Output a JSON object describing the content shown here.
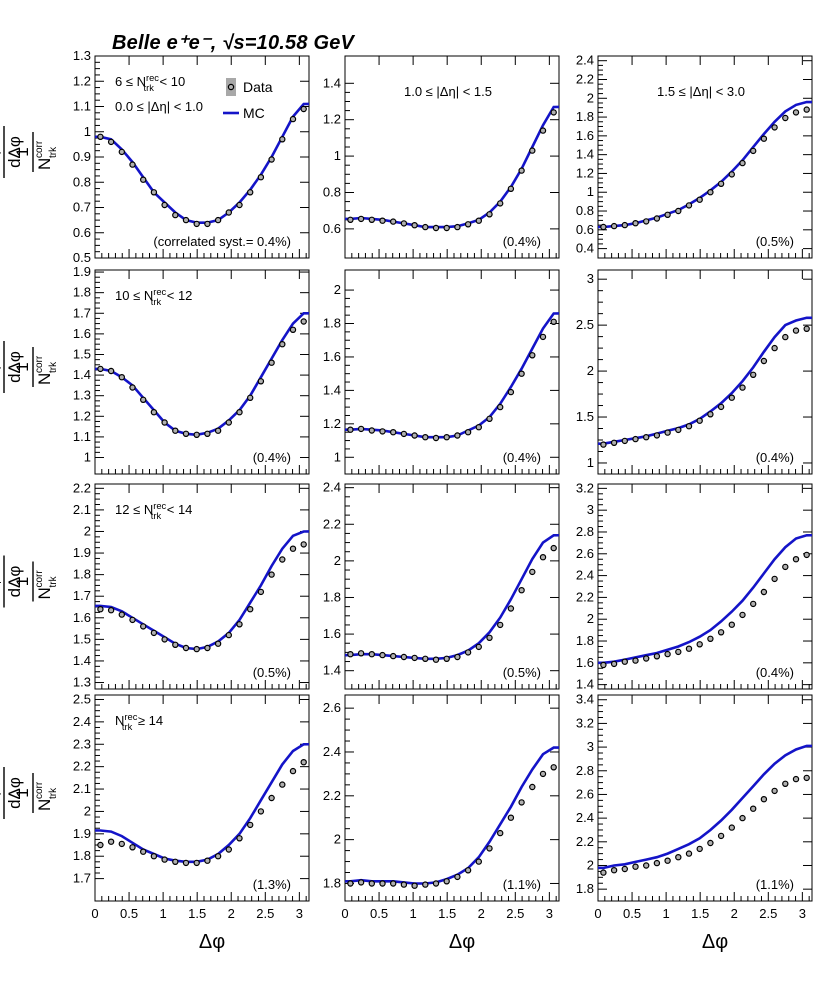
{
  "header": {
    "experiment": "Belle",
    "collision": "e⁺e⁻,",
    "energy": "√s=10.58 GeV"
  },
  "legend": {
    "data_label": "Data",
    "mc_label": "MC"
  },
  "axes": {
    "xlabel": "Δφ",
    "ylabel_num": "dN",
    "ylabel_num_sup": "corr",
    "ylabel_num_sub": "pair",
    "ylabel_den": "dΔφ",
    "ylabel_frac_num": "1",
    "ylabel_frac_den": "N",
    "ylabel_frac_den_sup": "corr",
    "ylabel_frac_den_sub": "trk"
  },
  "rows": [
    {
      "label": {
        "pre": "6 ≤ N",
        "sup": "rec",
        "sub": "trk",
        "post": " < 10"
      }
    },
    {
      "label": {
        "pre": "10 ≤ N",
        "sup": "rec",
        "sub": "trk",
        "post": " < 12"
      }
    },
    {
      "label": {
        "pre": "12 ≤ N",
        "sup": "rec",
        "sub": "trk",
        "post": " < 14"
      }
    },
    {
      "label": {
        "pre": "N",
        "sup": "rec",
        "sub": "trk",
        "post": " ≥ 14"
      }
    }
  ],
  "columns": [
    {
      "label": "0.0 ≤ |Δη| < 1.0"
    },
    {
      "label": "1.0 ≤ |Δη| < 1.5"
    },
    {
      "label": "1.5 ≤ |Δη| < 3.0"
    }
  ],
  "chart_data": [
    {
      "type": "scatter",
      "row": 0,
      "col": 0,
      "xlim": [
        0,
        3.14159
      ],
      "ylim": [
        0.5,
        1.3
      ],
      "yticks": [
        0.5,
        0.6,
        0.7,
        0.8,
        0.9,
        1.0,
        1.1,
        1.2,
        1.3
      ],
      "yticklabels": [
        "0.5",
        "0.6",
        "0.7",
        "0.8",
        "0.9",
        "1",
        "1.1",
        "1.2",
        "1.3"
      ],
      "syst": "(correlated syst.= 0.4%)",
      "data": [
        0.98,
        0.96,
        0.92,
        0.87,
        0.81,
        0.76,
        0.71,
        0.67,
        0.65,
        0.635,
        0.635,
        0.65,
        0.68,
        0.71,
        0.76,
        0.82,
        0.89,
        0.97,
        1.05,
        1.09
      ],
      "mc": [
        0.98,
        0.97,
        0.93,
        0.88,
        0.82,
        0.76,
        0.72,
        0.68,
        0.65,
        0.64,
        0.64,
        0.65,
        0.68,
        0.72,
        0.77,
        0.83,
        0.9,
        0.98,
        1.06,
        1.11
      ]
    },
    {
      "type": "scatter",
      "row": 0,
      "col": 1,
      "xlim": [
        0,
        3.14159
      ],
      "ylim": [
        0.44,
        1.55
      ],
      "yticks": [
        0.6,
        0.8,
        1.0,
        1.2,
        1.4
      ],
      "yticklabels": [
        "0.6",
        "0.8",
        "1",
        "1.2",
        "1.4"
      ],
      "syst": "(0.4%)",
      "data": [
        0.65,
        0.655,
        0.65,
        0.645,
        0.64,
        0.63,
        0.62,
        0.61,
        0.605,
        0.605,
        0.61,
        0.625,
        0.645,
        0.68,
        0.74,
        0.82,
        0.92,
        1.03,
        1.14,
        1.24
      ],
      "mc": [
        0.655,
        0.66,
        0.655,
        0.65,
        0.64,
        0.63,
        0.62,
        0.61,
        0.61,
        0.61,
        0.615,
        0.63,
        0.65,
        0.69,
        0.75,
        0.83,
        0.93,
        1.05,
        1.17,
        1.27
      ]
    },
    {
      "type": "scatter",
      "row": 0,
      "col": 2,
      "xlim": [
        0,
        3.14159
      ],
      "ylim": [
        0.3,
        2.45
      ],
      "yticks": [
        0.4,
        0.6,
        0.8,
        1.0,
        1.2,
        1.4,
        1.6,
        1.8,
        2.0,
        2.2,
        2.4
      ],
      "yticklabels": [
        "0.4",
        "0.6",
        "0.8",
        "1",
        "1.2",
        "1.4",
        "1.6",
        "1.8",
        "2",
        "2.2",
        "2.4"
      ],
      "syst": "(0.5%)",
      "data": [
        0.63,
        0.64,
        0.65,
        0.67,
        0.69,
        0.72,
        0.76,
        0.8,
        0.86,
        0.92,
        1.0,
        1.09,
        1.19,
        1.31,
        1.44,
        1.57,
        1.69,
        1.79,
        1.85,
        1.88
      ],
      "mc": [
        0.63,
        0.64,
        0.65,
        0.67,
        0.7,
        0.73,
        0.77,
        0.81,
        0.87,
        0.94,
        1.02,
        1.11,
        1.22,
        1.34,
        1.48,
        1.62,
        1.75,
        1.86,
        1.93,
        1.96
      ]
    },
    {
      "type": "scatter",
      "row": 1,
      "col": 0,
      "xlim": [
        0,
        3.14159
      ],
      "ylim": [
        0.92,
        1.91
      ],
      "yticks": [
        1.0,
        1.1,
        1.2,
        1.3,
        1.4,
        1.5,
        1.6,
        1.7,
        1.8,
        1.9
      ],
      "yticklabels": [
        "1",
        "1.1",
        "1.2",
        "1.3",
        "1.4",
        "1.5",
        "1.6",
        "1.7",
        "1.8",
        "1.9"
      ],
      "syst": "(0.4%)",
      "data": [
        1.43,
        1.42,
        1.39,
        1.34,
        1.28,
        1.22,
        1.17,
        1.13,
        1.115,
        1.11,
        1.115,
        1.13,
        1.17,
        1.22,
        1.29,
        1.37,
        1.46,
        1.55,
        1.62,
        1.66
      ],
      "mc": [
        1.43,
        1.42,
        1.39,
        1.35,
        1.29,
        1.23,
        1.17,
        1.13,
        1.115,
        1.11,
        1.12,
        1.14,
        1.18,
        1.23,
        1.3,
        1.39,
        1.48,
        1.57,
        1.65,
        1.7
      ]
    },
    {
      "type": "scatter",
      "row": 1,
      "col": 1,
      "xlim": [
        0,
        3.14159
      ],
      "ylim": [
        0.9,
        2.12
      ],
      "yticks": [
        1.0,
        1.2,
        1.4,
        1.6,
        1.8,
        2.0
      ],
      "yticklabels": [
        "1",
        "1.2",
        "1.4",
        "1.6",
        "1.8",
        "2"
      ],
      "syst": "(0.4%)",
      "data": [
        1.165,
        1.17,
        1.16,
        1.155,
        1.15,
        1.14,
        1.13,
        1.12,
        1.115,
        1.12,
        1.13,
        1.15,
        1.18,
        1.23,
        1.3,
        1.39,
        1.5,
        1.61,
        1.72,
        1.81
      ],
      "mc": [
        1.165,
        1.17,
        1.165,
        1.16,
        1.15,
        1.14,
        1.13,
        1.12,
        1.12,
        1.12,
        1.13,
        1.16,
        1.19,
        1.24,
        1.32,
        1.42,
        1.53,
        1.65,
        1.77,
        1.86
      ]
    },
    {
      "type": "scatter",
      "row": 1,
      "col": 2,
      "xlim": [
        0,
        3.14159
      ],
      "ylim": [
        0.88,
        3.1
      ],
      "yticks": [
        1.0,
        1.5,
        2.0,
        2.5,
        3.0
      ],
      "yticklabels": [
        "1",
        "1.5",
        "2",
        "2.5",
        "3"
      ],
      "syst": "(0.4%)",
      "data": [
        1.2,
        1.22,
        1.24,
        1.26,
        1.28,
        1.3,
        1.33,
        1.36,
        1.4,
        1.46,
        1.53,
        1.61,
        1.71,
        1.82,
        1.96,
        2.11,
        2.25,
        2.37,
        2.44,
        2.46
      ],
      "mc": [
        1.21,
        1.23,
        1.25,
        1.27,
        1.29,
        1.32,
        1.35,
        1.38,
        1.42,
        1.48,
        1.56,
        1.65,
        1.76,
        1.89,
        2.04,
        2.21,
        2.37,
        2.5,
        2.55,
        2.58
      ]
    },
    {
      "type": "scatter",
      "row": 2,
      "col": 0,
      "xlim": [
        0,
        3.14159
      ],
      "ylim": [
        1.27,
        2.22
      ],
      "yticks": [
        1.3,
        1.4,
        1.5,
        1.6,
        1.7,
        1.8,
        1.9,
        2.0,
        2.1,
        2.2
      ],
      "yticklabels": [
        "1.3",
        "1.4",
        "1.5",
        "1.6",
        "1.7",
        "1.8",
        "1.9",
        "2",
        "2.1",
        "2.2"
      ],
      "syst": "(0.5%)",
      "data": [
        1.64,
        1.635,
        1.615,
        1.59,
        1.56,
        1.53,
        1.5,
        1.475,
        1.46,
        1.455,
        1.46,
        1.48,
        1.52,
        1.57,
        1.64,
        1.72,
        1.8,
        1.87,
        1.92,
        1.94
      ],
      "mc": [
        1.655,
        1.65,
        1.63,
        1.6,
        1.57,
        1.54,
        1.51,
        1.48,
        1.46,
        1.455,
        1.465,
        1.49,
        1.53,
        1.59,
        1.67,
        1.75,
        1.84,
        1.92,
        1.98,
        2.0
      ]
    },
    {
      "type": "scatter",
      "row": 2,
      "col": 1,
      "xlim": [
        0,
        3.14159
      ],
      "ylim": [
        1.3,
        2.42
      ],
      "yticks": [
        1.4,
        1.6,
        1.8,
        2.0,
        2.2,
        2.4
      ],
      "yticklabels": [
        "1.4",
        "1.6",
        "1.8",
        "2",
        "2.2",
        "2.4"
      ],
      "syst": "(0.5%)",
      "data": [
        1.49,
        1.495,
        1.49,
        1.485,
        1.48,
        1.475,
        1.47,
        1.465,
        1.46,
        1.465,
        1.475,
        1.5,
        1.53,
        1.58,
        1.65,
        1.74,
        1.84,
        1.94,
        2.02,
        2.07
      ],
      "mc": [
        1.485,
        1.49,
        1.49,
        1.485,
        1.48,
        1.475,
        1.47,
        1.465,
        1.465,
        1.47,
        1.485,
        1.51,
        1.55,
        1.61,
        1.69,
        1.79,
        1.9,
        2.01,
        2.1,
        2.14
      ]
    },
    {
      "type": "scatter",
      "row": 2,
      "col": 2,
      "xlim": [
        0,
        3.14159
      ],
      "ylim": [
        1.36,
        3.24
      ],
      "yticks": [
        1.4,
        1.6,
        1.8,
        2.0,
        2.2,
        2.4,
        2.6,
        2.8,
        3.0,
        3.2
      ],
      "yticklabels": [
        "1.4",
        "1.6",
        "1.8",
        "2",
        "2.2",
        "2.4",
        "2.6",
        "2.8",
        "3",
        "3.2"
      ],
      "syst": "(0.4%)",
      "data": [
        1.58,
        1.59,
        1.61,
        1.62,
        1.64,
        1.66,
        1.68,
        1.7,
        1.73,
        1.77,
        1.82,
        1.88,
        1.95,
        2.04,
        2.14,
        2.25,
        2.37,
        2.48,
        2.55,
        2.59
      ],
      "mc": [
        1.6,
        1.61,
        1.63,
        1.65,
        1.67,
        1.69,
        1.72,
        1.75,
        1.79,
        1.84,
        1.9,
        1.98,
        2.07,
        2.17,
        2.29,
        2.42,
        2.55,
        2.66,
        2.74,
        2.77
      ]
    },
    {
      "type": "scatter",
      "row": 3,
      "col": 0,
      "xlim": [
        0,
        3.14159
      ],
      "ylim": [
        1.6,
        2.52
      ],
      "yticks": [
        1.7,
        1.8,
        1.9,
        2.0,
        2.1,
        2.2,
        2.3,
        2.4,
        2.5
      ],
      "yticklabels": [
        "1.7",
        "1.8",
        "1.9",
        "2",
        "2.1",
        "2.2",
        "2.3",
        "2.4",
        "2.5"
      ],
      "syst": "(1.3%)",
      "data": [
        1.85,
        1.865,
        1.855,
        1.84,
        1.82,
        1.8,
        1.785,
        1.775,
        1.77,
        1.77,
        1.78,
        1.8,
        1.83,
        1.88,
        1.94,
        2.0,
        2.06,
        2.12,
        2.18,
        2.22
      ],
      "mc": [
        1.915,
        1.91,
        1.89,
        1.86,
        1.83,
        1.81,
        1.79,
        1.78,
        1.775,
        1.775,
        1.785,
        1.81,
        1.85,
        1.9,
        1.97,
        2.05,
        2.13,
        2.21,
        2.27,
        2.3
      ]
    },
    {
      "type": "scatter",
      "row": 3,
      "col": 1,
      "xlim": [
        0,
        3.14159
      ],
      "ylim": [
        1.72,
        2.66
      ],
      "yticks": [
        1.8,
        2.0,
        2.2,
        2.4,
        2.6
      ],
      "yticklabels": [
        "1.8",
        "2",
        "2.2",
        "2.4",
        "2.6"
      ],
      "syst": "(1.1%)",
      "data": [
        1.8,
        1.805,
        1.8,
        1.8,
        1.8,
        1.795,
        1.79,
        1.795,
        1.8,
        1.81,
        1.83,
        1.86,
        1.9,
        1.96,
        2.03,
        2.1,
        2.17,
        2.24,
        2.3,
        2.33
      ],
      "mc": [
        1.81,
        1.815,
        1.81,
        1.81,
        1.81,
        1.805,
        1.8,
        1.8,
        1.805,
        1.82,
        1.84,
        1.87,
        1.92,
        1.99,
        2.07,
        2.15,
        2.24,
        2.32,
        2.39,
        2.42
      ]
    },
    {
      "type": "scatter",
      "row": 3,
      "col": 2,
      "xlim": [
        0,
        3.14159
      ],
      "ylim": [
        1.7,
        3.44
      ],
      "yticks": [
        1.8,
        2.0,
        2.2,
        2.4,
        2.6,
        2.8,
        3.0,
        3.2,
        3.4
      ],
      "yticklabels": [
        "1.8",
        "2",
        "2.2",
        "2.4",
        "2.6",
        "2.8",
        "3",
        "3.2",
        "3.4"
      ],
      "syst": "(1.1%)",
      "data": [
        1.94,
        1.96,
        1.97,
        1.99,
        2.0,
        2.02,
        2.04,
        2.07,
        2.1,
        2.14,
        2.19,
        2.25,
        2.32,
        2.4,
        2.48,
        2.56,
        2.63,
        2.69,
        2.73,
        2.74
      ],
      "mc": [
        1.98,
        2.0,
        2.01,
        2.03,
        2.05,
        2.07,
        2.1,
        2.14,
        2.18,
        2.23,
        2.3,
        2.38,
        2.47,
        2.57,
        2.67,
        2.77,
        2.86,
        2.93,
        2.98,
        3.01
      ]
    }
  ]
}
